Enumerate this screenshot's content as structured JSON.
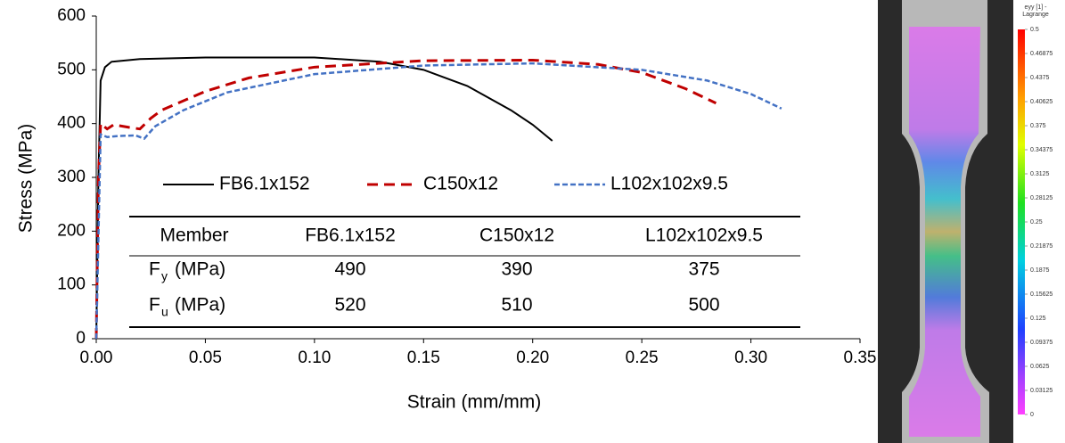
{
  "chart_data": {
    "type": "line",
    "xlabel": "Strain (mm/mm)",
    "ylabel": "Stress (MPa)",
    "xlim": [
      0,
      0.35
    ],
    "ylim": [
      0,
      600
    ],
    "xticks": [
      {
        "value": 0,
        "label": "0.00"
      },
      {
        "value": 0.05,
        "label": "0.05"
      },
      {
        "value": 0.1,
        "label": "0.10"
      },
      {
        "value": 0.15,
        "label": "0.15"
      },
      {
        "value": 0.2,
        "label": "0.20"
      },
      {
        "value": 0.25,
        "label": "0.25"
      },
      {
        "value": 0.3,
        "label": "0.30"
      },
      {
        "value": 0.35,
        "label": "0.35"
      }
    ],
    "yticks": [
      0,
      100,
      200,
      300,
      400,
      500,
      600
    ],
    "grid": false,
    "series": [
      {
        "name": "FB6.1x152",
        "color": "#000000",
        "dash": "solid",
        "x": [
          0,
          0.001,
          0.002,
          0.004,
          0.007,
          0.02,
          0.05,
          0.1,
          0.13,
          0.15,
          0.17,
          0.19,
          0.2,
          0.209
        ],
        "values": [
          0,
          300,
          480,
          505,
          515,
          520,
          523,
          523,
          515,
          500,
          470,
          425,
          398,
          368
        ]
      },
      {
        "name": "C150x12",
        "color": "#c00000",
        "dash": "long",
        "x": [
          0,
          0.001,
          0.002,
          0.005,
          0.008,
          0.015,
          0.02,
          0.025,
          0.03,
          0.05,
          0.07,
          0.1,
          0.15,
          0.2,
          0.23,
          0.25,
          0.27,
          0.284
        ],
        "values": [
          0,
          300,
          400,
          390,
          398,
          393,
          390,
          410,
          425,
          460,
          485,
          505,
          517,
          518,
          510,
          495,
          465,
          438
        ]
      },
      {
        "name": "L102x102x9.5",
        "color": "#4472c4",
        "dash": "short",
        "x": [
          0,
          0.002,
          0.005,
          0.01,
          0.018,
          0.022,
          0.027,
          0.04,
          0.06,
          0.1,
          0.15,
          0.2,
          0.25,
          0.28,
          0.3,
          0.314
        ],
        "values": [
          0,
          380,
          375,
          377,
          378,
          372,
          395,
          425,
          458,
          492,
          508,
          512,
          500,
          480,
          455,
          428
        ]
      }
    ],
    "table": {
      "header": [
        "Member",
        "FB6.1x152",
        "C150x12",
        "L102x102x9.5"
      ],
      "rows": [
        {
          "symbol": "F",
          "subscript": "y",
          "unit": "(MPa)",
          "values": [
            490,
            390,
            375
          ]
        },
        {
          "symbol": "F",
          "subscript": "u",
          "unit": "(MPa)",
          "values": [
            520,
            510,
            500
          ]
        }
      ]
    },
    "colorbar": {
      "title": [
        "eyy [1] -",
        "Lagrange"
      ],
      "ticks": [
        0.5,
        0.46875,
        0.4375,
        0.40625,
        0.375,
        0.34375,
        0.3125,
        0.28125,
        0.25,
        0.21875,
        0.1875,
        0.15625,
        0.125,
        0.09375,
        0.0625,
        0.03125,
        0
      ]
    }
  }
}
